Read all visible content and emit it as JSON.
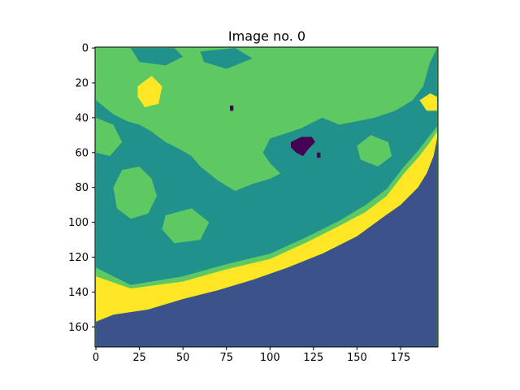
{
  "chart_data": {
    "type": "heatmap",
    "title": "Image no. 0",
    "xlabel": "",
    "ylabel": "",
    "image_shape": {
      "rows": 172,
      "cols": 197
    },
    "xlim": [
      -0.5,
      196.5
    ],
    "ylim": [
      171.5,
      -0.5
    ],
    "x_ticks": [
      0,
      25,
      50,
      75,
      100,
      125,
      150,
      175
    ],
    "y_ticks": [
      0,
      20,
      40,
      60,
      80,
      100,
      120,
      140,
      160
    ],
    "grid": false,
    "legend": "none",
    "classes": [
      {
        "id": 0,
        "color": "#440154"
      },
      {
        "id": 1,
        "color": "#3b528b"
      },
      {
        "id": 2,
        "color": "#21918c"
      },
      {
        "id": 3,
        "color": "#5ec962"
      },
      {
        "id": 4,
        "color": "#fde725"
      }
    ],
    "background_class": 3,
    "regions": [
      {
        "class": 1,
        "polygon": [
          [
            0,
            157
          ],
          [
            10,
            153
          ],
          [
            30,
            150
          ],
          [
            50,
            144
          ],
          [
            70,
            139
          ],
          [
            90,
            133
          ],
          [
            110,
            126
          ],
          [
            130,
            118
          ],
          [
            150,
            108
          ],
          [
            165,
            97
          ],
          [
            175,
            90
          ],
          [
            185,
            80
          ],
          [
            190,
            72
          ],
          [
            194,
            62
          ],
          [
            196,
            52
          ],
          [
            196,
            171.5
          ],
          [
            0,
            171.5
          ]
        ]
      },
      {
        "class": 4,
        "polygon": [
          [
            0,
            131
          ],
          [
            20,
            138
          ],
          [
            50,
            134
          ],
          [
            75,
            127
          ],
          [
            100,
            121
          ],
          [
            120,
            112
          ],
          [
            140,
            102
          ],
          [
            155,
            94
          ],
          [
            167,
            85
          ],
          [
            177,
            72
          ],
          [
            185,
            63
          ],
          [
            192,
            54
          ],
          [
            196,
            48
          ],
          [
            196,
            52
          ],
          [
            194,
            62
          ],
          [
            190,
            72
          ],
          [
            185,
            80
          ],
          [
            175,
            90
          ],
          [
            165,
            97
          ],
          [
            150,
            108
          ],
          [
            130,
            118
          ],
          [
            110,
            126
          ],
          [
            90,
            133
          ],
          [
            70,
            139
          ],
          [
            50,
            144
          ],
          [
            30,
            150
          ],
          [
            10,
            153
          ],
          [
            0,
            157
          ]
        ]
      },
      {
        "class": 2,
        "polygon": [
          [
            0,
            126
          ],
          [
            20,
            136
          ],
          [
            50,
            131
          ],
          [
            75,
            124
          ],
          [
            100,
            118
          ],
          [
            120,
            109
          ],
          [
            140,
            99
          ],
          [
            155,
            90
          ],
          [
            167,
            81
          ],
          [
            177,
            68
          ],
          [
            185,
            59
          ],
          [
            192,
            50
          ],
          [
            196,
            45
          ],
          [
            196,
            0
          ],
          [
            192,
            8
          ],
          [
            188,
            22
          ],
          [
            182,
            30
          ],
          [
            172,
            36
          ],
          [
            160,
            40
          ],
          [
            140,
            44
          ],
          [
            130,
            40
          ],
          [
            118,
            46
          ],
          [
            100,
            52
          ],
          [
            96,
            60
          ],
          [
            100,
            66
          ],
          [
            106,
            72
          ],
          [
            115,
            76
          ],
          [
            125,
            80
          ],
          [
            132,
            84
          ],
          [
            140,
            85
          ],
          [
            148,
            80
          ],
          [
            140,
            72
          ],
          [
            125,
            69
          ],
          [
            110,
            70
          ],
          [
            100,
            75
          ],
          [
            90,
            78
          ],
          [
            80,
            82
          ],
          [
            70,
            76
          ],
          [
            60,
            68
          ],
          [
            55,
            62
          ],
          [
            48,
            58
          ],
          [
            40,
            54
          ],
          [
            32,
            48
          ],
          [
            25,
            44
          ],
          [
            18,
            42
          ],
          [
            10,
            38
          ],
          [
            5,
            34
          ],
          [
            0,
            30
          ]
        ]
      },
      {
        "class": 3,
        "polygon": [
          [
            10,
            80
          ],
          [
            15,
            70
          ],
          [
            25,
            68
          ],
          [
            32,
            75
          ],
          [
            35,
            85
          ],
          [
            30,
            95
          ],
          [
            20,
            98
          ],
          [
            12,
            92
          ]
        ]
      },
      {
        "class": 3,
        "polygon": [
          [
            150,
            56
          ],
          [
            158,
            50
          ],
          [
            168,
            54
          ],
          [
            170,
            62
          ],
          [
            162,
            68
          ],
          [
            152,
            64
          ]
        ]
      },
      {
        "class": 3,
        "polygon": [
          [
            40,
            96
          ],
          [
            55,
            92
          ],
          [
            65,
            100
          ],
          [
            60,
            110
          ],
          [
            45,
            112
          ],
          [
            38,
            104
          ]
        ]
      },
      {
        "class": 3,
        "polygon": [
          [
            0,
            40
          ],
          [
            10,
            44
          ],
          [
            15,
            54
          ],
          [
            8,
            62
          ],
          [
            0,
            60
          ]
        ]
      },
      {
        "class": 2,
        "polygon": [
          [
            20,
            0
          ],
          [
            45,
            0
          ],
          [
            50,
            5
          ],
          [
            40,
            10
          ],
          [
            25,
            8
          ]
        ]
      },
      {
        "class": 2,
        "polygon": [
          [
            60,
            2
          ],
          [
            80,
            0
          ],
          [
            90,
            6
          ],
          [
            75,
            12
          ],
          [
            62,
            8
          ]
        ]
      },
      {
        "class": 4,
        "polygon": [
          [
            24,
            22
          ],
          [
            32,
            16
          ],
          [
            38,
            22
          ],
          [
            36,
            32
          ],
          [
            28,
            34
          ],
          [
            24,
            28
          ]
        ]
      },
      {
        "class": 4,
        "polygon": [
          [
            186,
            30
          ],
          [
            192,
            26
          ],
          [
            196,
            28
          ],
          [
            196,
            36
          ],
          [
            190,
            36
          ]
        ]
      },
      {
        "class": 0,
        "polygon": [
          [
            112,
            54
          ],
          [
            118,
            51
          ],
          [
            124,
            51
          ],
          [
            126,
            54
          ],
          [
            122,
            58
          ],
          [
            119,
            62
          ],
          [
            115,
            60
          ],
          [
            112,
            57
          ]
        ]
      },
      {
        "class": 0,
        "polygon": [
          [
            77,
            33
          ],
          [
            79,
            33
          ],
          [
            79,
            36
          ],
          [
            77,
            36
          ]
        ]
      },
      {
        "class": 0,
        "polygon": [
          [
            127,
            60
          ],
          [
            129,
            60
          ],
          [
            129,
            63
          ],
          [
            127,
            63
          ]
        ]
      }
    ]
  }
}
